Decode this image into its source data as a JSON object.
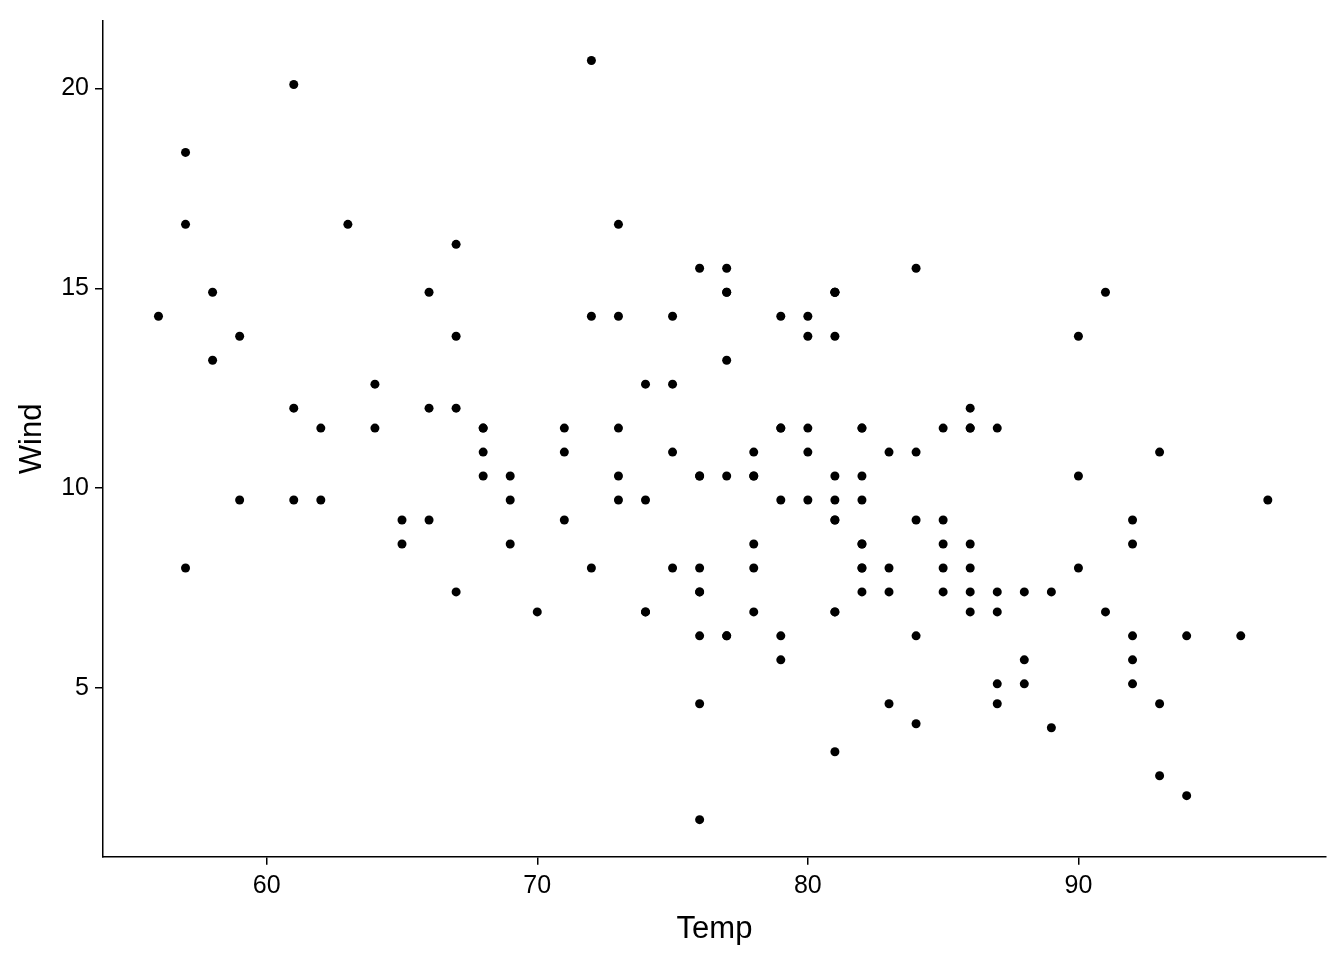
{
  "chart_data": {
    "type": "scatter",
    "xlabel": "Temp",
    "ylabel": "Wind",
    "x": [
      67,
      72,
      74,
      62,
      56,
      66,
      65,
      59,
      61,
      69,
      74,
      69,
      66,
      68,
      58,
      64,
      66,
      57,
      68,
      62,
      59,
      73,
      61,
      61,
      57,
      58,
      57,
      67,
      81,
      79,
      76,
      78,
      74,
      67,
      84,
      85,
      79,
      82,
      87,
      90,
      87,
      93,
      92,
      82,
      80,
      79,
      77,
      72,
      65,
      73,
      76,
      77,
      76,
      76,
      76,
      75,
      78,
      73,
      80,
      77,
      83,
      84,
      85,
      81,
      84,
      83,
      83,
      88,
      92,
      92,
      89,
      82,
      73,
      81,
      91,
      80,
      81,
      82,
      84,
      87,
      85,
      74,
      81,
      82,
      86,
      85,
      82,
      86,
      88,
      86,
      83,
      81,
      81,
      81,
      82,
      86,
      85,
      87,
      89,
      90,
      90,
      92,
      86,
      86,
      82,
      80,
      79,
      77,
      79,
      76,
      78,
      78,
      77,
      72,
      75,
      79,
      81,
      86,
      88,
      97,
      94,
      96,
      94,
      91,
      92,
      93,
      93,
      87,
      84,
      80,
      78,
      75,
      73,
      81,
      76,
      77,
      71,
      71,
      78,
      67,
      76,
      68,
      82,
      64,
      71,
      81,
      69,
      63,
      70,
      77,
      75,
      76,
      68
    ],
    "values": [
      7.4,
      8.0,
      12.6,
      11.5,
      14.3,
      14.9,
      8.6,
      13.8,
      20.1,
      8.6,
      6.9,
      9.7,
      9.2,
      10.9,
      13.2,
      11.5,
      12.0,
      18.4,
      11.5,
      9.7,
      9.7,
      16.6,
      9.7,
      12.0,
      16.6,
      14.9,
      8.0,
      12.0,
      14.9,
      5.7,
      7.4,
      8.6,
      9.7,
      16.1,
      9.2,
      8.6,
      14.3,
      9.7,
      6.9,
      13.8,
      11.5,
      10.9,
      9.2,
      8.0,
      13.8,
      11.5,
      14.9,
      20.7,
      9.2,
      11.5,
      10.3,
      6.3,
      1.7,
      4.6,
      6.3,
      8.0,
      8.0,
      10.3,
      11.5,
      14.9,
      8.0,
      4.1,
      9.2,
      9.2,
      10.9,
      4.6,
      10.9,
      5.1,
      6.3,
      5.7,
      7.4,
      8.6,
      14.3,
      14.9,
      14.9,
      14.3,
      6.9,
      10.3,
      6.3,
      5.1,
      11.5,
      6.9,
      9.7,
      11.5,
      8.6,
      8.0,
      8.6,
      12.0,
      7.4,
      7.4,
      7.4,
      9.2,
      6.9,
      13.8,
      7.4,
      6.9,
      7.4,
      4.6,
      4.0,
      10.3,
      8.0,
      8.6,
      11.5,
      11.5,
      11.5,
      9.7,
      11.5,
      10.3,
      6.3,
      7.4,
      10.9,
      10.3,
      15.5,
      14.3,
      12.6,
      9.7,
      3.4,
      8.0,
      5.7,
      9.7,
      2.3,
      6.3,
      6.3,
      6.9,
      5.1,
      2.8,
      4.6,
      7.4,
      15.5,
      10.9,
      10.3,
      10.9,
      9.7,
      14.9,
      15.5,
      6.3,
      10.9,
      11.5,
      6.9,
      13.8,
      10.3,
      10.3,
      8.0,
      12.6,
      9.2,
      10.3,
      10.3,
      16.6,
      6.9,
      13.2,
      14.3,
      8.0,
      11.5
    ],
    "color": "#000000",
    "marker": "circle",
    "xlim": [
      53.95,
      99.15
    ],
    "xticks": [
      60,
      70,
      80,
      90
    ],
    "ylim": [
      0.77,
      21.69
    ],
    "yticks": [
      5,
      10,
      15,
      20
    ],
    "grid": false,
    "legend": false
  }
}
